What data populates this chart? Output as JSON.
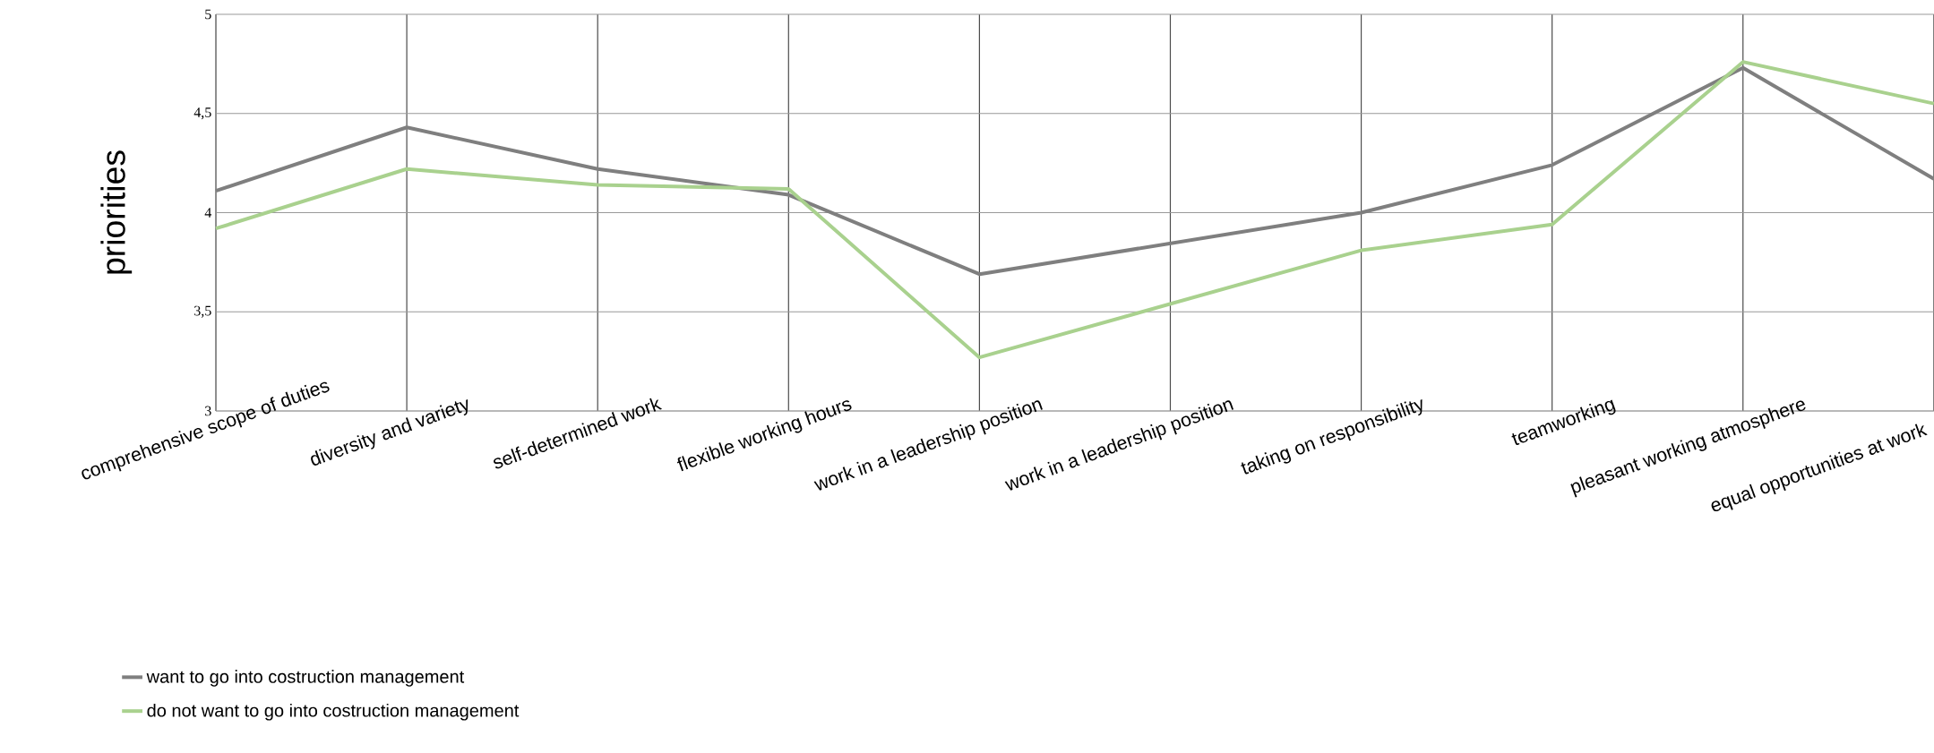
{
  "chart_data": {
    "type": "line",
    "ylabel": "priorities",
    "categories": [
      "comprehensive scope of duties",
      "diversity and variety",
      "self-determined work",
      "flexible working hours",
      "work in a leadership position",
      "work in a leadership position",
      "taking on responsibility",
      "teamworking",
      "pleasant working atmosphere",
      "equal opportunities at work"
    ],
    "series": [
      {
        "name": "want to go into costruction management",
        "color": "#7f7f7f",
        "values": [
          4.11,
          4.43,
          4.22,
          4.09,
          3.69,
          null,
          4.0,
          4.24,
          4.73,
          4.17
        ]
      },
      {
        "name": "do not want to go into costruction management",
        "color": "#a9d18e",
        "values": [
          3.92,
          4.22,
          4.14,
          4.12,
          3.27,
          null,
          3.81,
          3.94,
          4.76,
          4.55
        ]
      }
    ],
    "ylim": [
      3,
      5
    ],
    "yticks": [
      {
        "value": 3,
        "label": "3"
      },
      {
        "value": 3.5,
        "label": "3,5"
      },
      {
        "value": 4,
        "label": "4"
      },
      {
        "value": 4.5,
        "label": "4,5"
      },
      {
        "value": 5,
        "label": "5"
      }
    ],
    "grid": true,
    "legend": "bottom left",
    "marker": "none",
    "line_style": "solid"
  }
}
